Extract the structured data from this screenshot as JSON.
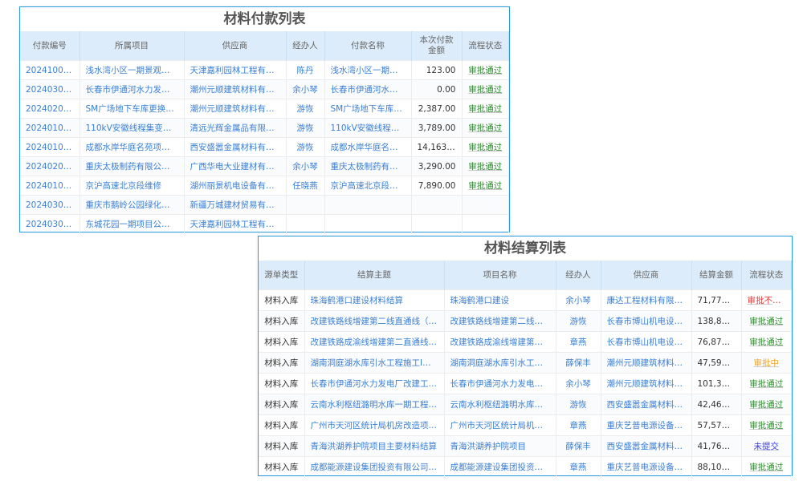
{
  "payment": {
    "title": "材料付款列表",
    "headers": [
      "付款编号",
      "所属项目",
      "供应商",
      "经办人",
      "付款名称",
      "本次付款金额",
      "流程状态"
    ],
    "rows": [
      [
        "2024100001",
        "浅水湾小区一期景观提…",
        "天津嘉利园林工程有限…",
        "陈丹",
        "浅水湾小区一期景…",
        "123.00",
        "审批通过"
      ],
      [
        "2024030007",
        "长春市伊通河水力发电…",
        "潮州元顺建筑材料有限…",
        "余小琴",
        "长春市伊通河水力…",
        "0.00",
        "审批通过"
      ],
      [
        "2024020012",
        "SM广场地下车库更换摄…",
        "潮州元顺建筑材料有限…",
        "游恢",
        "SM广场地下车库更…",
        "2,387.00",
        "审批通过"
      ],
      [
        "2024010010",
        "110kV安徽线程集变开断…",
        "清远光辉金属品有限公司",
        "游恢",
        "110kV安徽线程集变…",
        "3,789.00",
        "审批通过"
      ],
      [
        "2024010009",
        "成都水岸华庭名苑项目…",
        "西安盛嚣金属材料有限…",
        "游恢",
        "成都水岸华庭名苑…",
        "14,163.00",
        "审批通过"
      ],
      [
        "2024020011",
        "重庆太极制药有限公司…",
        "广西华电大业建材有限…",
        "余小琴",
        "重庆太极制药有限…",
        "3,290.00",
        "审批通过"
      ],
      [
        "2024010008",
        "京沪高速北京段维修",
        "湖州丽景机电设备有限…",
        "任晓燕",
        "京沪高速北京段维…",
        "7,890.00",
        "审批通过"
      ],
      [
        "2024030005",
        "重庆市鹅岭公园绿化景…",
        "新疆万城建材贸易有限…",
        "",
        "",
        "",
        ""
      ],
      [
        "2024030006",
        "东城花园一期项目公寓…",
        "天津嘉利园林工程有限…",
        "",
        "",
        "",
        ""
      ]
    ]
  },
  "settlement": {
    "title": "材料结算列表",
    "headers": [
      "源单类型",
      "结算主题",
      "项目名称",
      "经办人",
      "供应商",
      "结算金额",
      "流程状态"
    ],
    "rows": [
      [
        "材料入库",
        "珠海鹤港口建设材料结算",
        "珠海鹤港口建设",
        "余小琴",
        "康达工程材料有限公司",
        "71,777.00",
        "审批不通过"
      ],
      [
        "材料入库",
        "改建铁路线增建第二线直通线（成…",
        "改建铁路线增建第二线直…",
        "游恢",
        "长春市博山机电设备…",
        "138,888…",
        "审批通过"
      ],
      [
        "材料入库",
        "改建铁路成渝线增建第二直通线（…",
        "改建铁路成渝线增建第二…",
        "章燕",
        "长春市博山机电设备…",
        "76,877.00",
        "审批通过"
      ],
      [
        "材料入库",
        "湖南洞庭湖水库引水工程施工I标材…",
        "湖南洞庭湖水库引水工程…",
        "薛保丰",
        "潮州元顺建筑材料有…",
        "47,596.00",
        "审批中"
      ],
      [
        "材料入库",
        "长春市伊通河水力发电厂改建工程…",
        "长春市伊通河水力发电厂…",
        "余小琴",
        "潮州元顺建筑材料有…",
        "101,320…",
        "审批通过"
      ],
      [
        "材料入库",
        "云南水利枢纽潞明水库一期工程施…",
        "云南水利枢纽潞明水库一…",
        "游恢",
        "西安盛嚣金属材料有…",
        "42,465.00",
        "审批通过"
      ],
      [
        "材料入库",
        "广州市天河区统计局机房改造项目…",
        "广州市天河区统计局机房…",
        "章燕",
        "重庆艺普电源设备有…",
        "57,576.00",
        "审批通过"
      ],
      [
        "材料入库",
        "青海洪湖养护院项目主要材料结算",
        "青海洪湖养护院项目",
        "薛保丰",
        "西安盛嚣金属材料有…",
        "41,763.00",
        "未提交"
      ],
      [
        "材料入库",
        "成都能源建设集团投资有限公司临…",
        "成都能源建设集团投资有…",
        "章燕",
        "重庆艺普电源设备有…",
        "88,104.00",
        "审批通过"
      ]
    ]
  },
  "status_colors": {
    "审批通过": "#2e8b2e",
    "审批不通过": "#e53935",
    "审批中": "#f5a623",
    "未提交": "#3b3be8"
  }
}
